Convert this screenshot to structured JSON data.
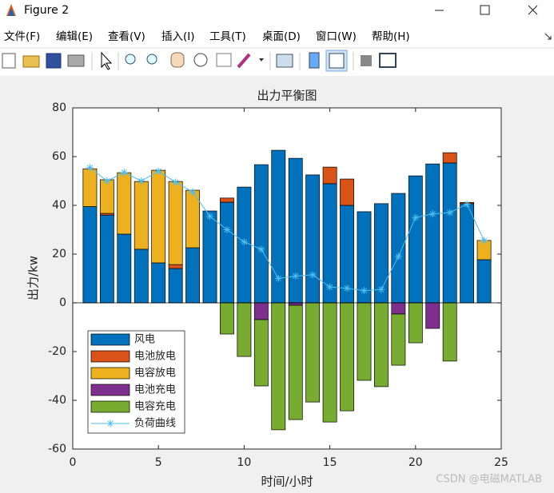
{
  "window": {
    "title": "Figure 2",
    "menu": [
      "文件(F)",
      "编辑(E)",
      "查看(V)",
      "插入(I)",
      "工具(T)",
      "桌面(D)",
      "窗口(W)",
      "帮助(H)"
    ],
    "watermark": "CSDN @电磁MATLAB"
  },
  "chart_data": {
    "type": "bar",
    "stacked": true,
    "title": "出力平衡图",
    "xlabel": "时间/小时",
    "ylabel": "出力/kw",
    "x": [
      1,
      2,
      3,
      4,
      5,
      6,
      7,
      8,
      9,
      10,
      11,
      12,
      13,
      14,
      15,
      16,
      17,
      18,
      19,
      20,
      21,
      22,
      23,
      24
    ],
    "xlim": [
      0,
      25
    ],
    "xticks": [
      0,
      5,
      10,
      15,
      20,
      25
    ],
    "ylim": [
      -60,
      80
    ],
    "yticks": [
      -60,
      -40,
      -20,
      0,
      20,
      40,
      60,
      80
    ],
    "legend": "lower-left",
    "series": [
      {
        "name": "风电",
        "color": "#0072bd",
        "values": [
          39.5,
          36,
          28.2,
          22,
          16.4,
          14.1,
          22.6,
          37.7,
          41.3,
          47.5,
          56.7,
          62.6,
          59.3,
          52.5,
          48.9,
          40,
          37.4,
          40.7,
          44.9,
          52.1,
          57,
          57.4,
          40.7,
          17.7
        ]
      },
      {
        "name": "电池放电",
        "color": "#d95319",
        "values": [
          0,
          0.7,
          0,
          0,
          0,
          1.6,
          0,
          0,
          1.7,
          0,
          0,
          0,
          0,
          0,
          6.8,
          10.8,
          0,
          0,
          0,
          0,
          0,
          4.2,
          0.5,
          0
        ]
      },
      {
        "name": "电容放电",
        "color": "#edb120",
        "values": [
          15.5,
          13.8,
          25.2,
          27.8,
          38,
          34.1,
          23.6,
          0,
          0,
          0,
          0,
          0,
          0,
          0,
          0,
          0,
          0,
          0,
          0,
          0,
          0,
          0,
          0,
          7.9
        ]
      },
      {
        "name": "电池充电",
        "color": "#7e2f8e",
        "values": [
          0,
          0,
          0,
          0,
          0,
          0,
          0,
          0,
          0,
          0,
          -6.9,
          0,
          -1,
          0,
          0,
          0,
          0,
          0,
          -4.6,
          0,
          -10.5,
          0,
          0,
          0
        ]
      },
      {
        "name": "电容充电",
        "color": "#77ac30",
        "values": [
          0,
          0,
          0,
          0,
          0,
          0,
          0,
          0,
          -12.8,
          -22,
          -27.2,
          -52.1,
          -46.9,
          -40.7,
          -48.9,
          -44.3,
          -31.8,
          -34.4,
          -21,
          -16.4,
          0,
          -23.9,
          0,
          0
        ]
      },
      {
        "name": "负荷曲线",
        "color": "#4dbeee",
        "type": "line",
        "values": [
          55.5,
          50,
          53.5,
          50,
          54,
          49.5,
          45.5,
          35.5,
          30,
          25,
          22,
          10,
          11,
          11.5,
          6.5,
          6,
          5,
          5.5,
          19,
          35,
          36.5,
          37,
          40.5,
          25.5
        ]
      }
    ]
  }
}
